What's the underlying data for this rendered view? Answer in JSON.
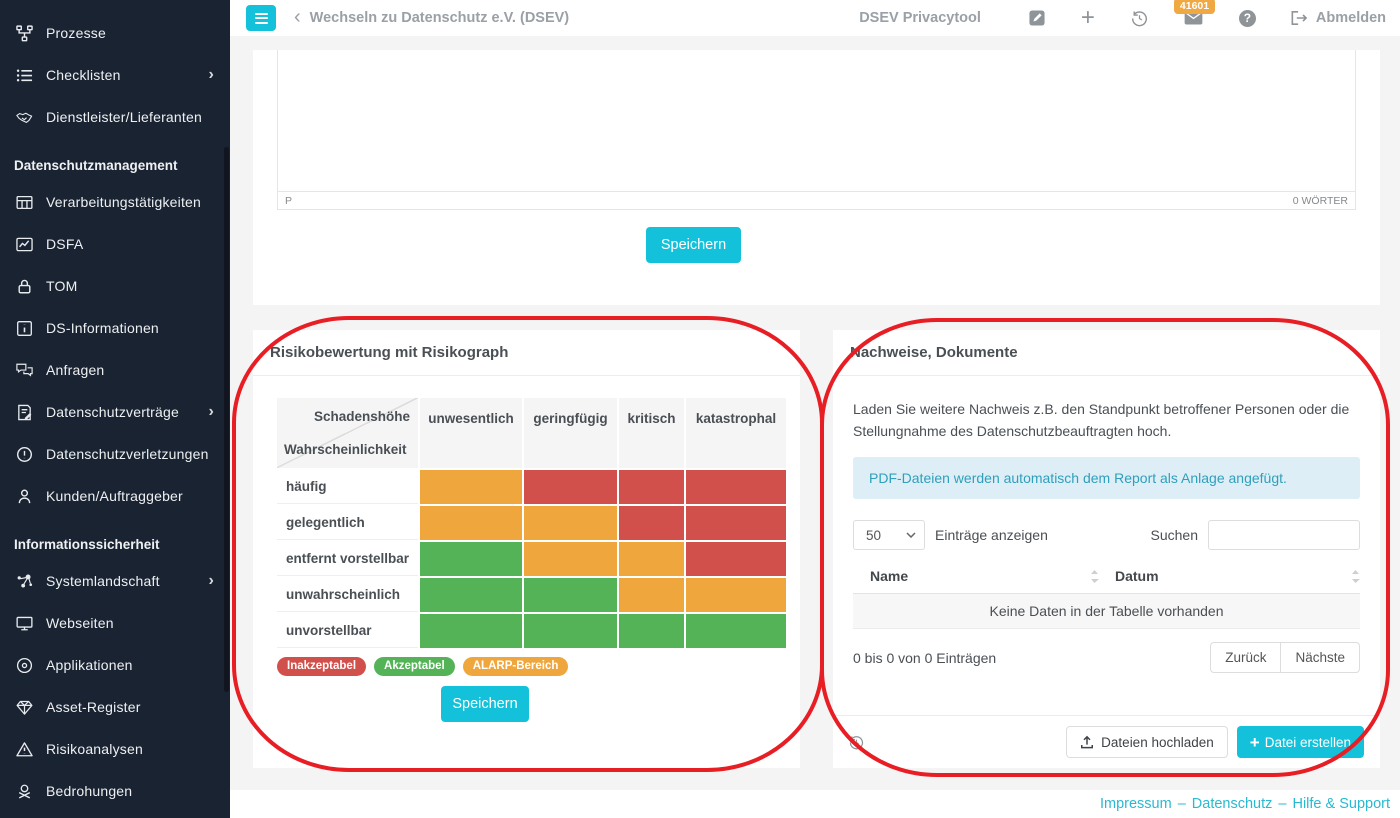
{
  "header": {
    "back_label": "Wechseln zu Datenschutz e.V. (DSEV)",
    "app_name": "DSEV Privacytool",
    "mail_badge": "41601",
    "logout_label": "Abmelden"
  },
  "sidebar": {
    "sections": [
      {
        "header": null,
        "items": [
          {
            "label": "Prozesse",
            "icon": "sitemap-icon"
          },
          {
            "label": "Checklisten",
            "icon": "checklist-icon",
            "chevron": true
          },
          {
            "label": "Dienstleister/Lieferanten",
            "icon": "handshake-icon"
          }
        ]
      },
      {
        "header": "Datenschutzmanagement",
        "items": [
          {
            "label": "Verarbeitungstätigkeiten",
            "icon": "table-icon"
          },
          {
            "label": "DSFA",
            "icon": "chart-icon"
          },
          {
            "label": "TOM",
            "icon": "lock-icon"
          },
          {
            "label": "DS-Informationen",
            "icon": "info-square-icon"
          },
          {
            "label": "Anfragen",
            "icon": "chat-icon"
          },
          {
            "label": "Datenschutzverträge",
            "icon": "contract-icon",
            "chevron": true
          },
          {
            "label": "Datenschutzverletzungen",
            "icon": "alert-circle-icon"
          },
          {
            "label": "Kunden/Auftraggeber",
            "icon": "person-icon"
          }
        ]
      },
      {
        "header": "Informationssicherheit",
        "items": [
          {
            "label": "Systemlandschaft",
            "icon": "network-icon",
            "chevron": true
          },
          {
            "label": "Webseiten",
            "icon": "monitor-icon"
          },
          {
            "label": "Applikationen",
            "icon": "disc-icon"
          },
          {
            "label": "Asset-Register",
            "icon": "gem-icon"
          },
          {
            "label": "Risikoanalysen",
            "icon": "warning-triangle-icon"
          },
          {
            "label": "Bedrohungen",
            "icon": "skull-icon"
          }
        ]
      }
    ]
  },
  "editor_card": {
    "paragraph_indicator": "P",
    "word_count": "0 WÖRTER",
    "save_label": "Speichern"
  },
  "risk_card": {
    "title": "Risikobewertung mit Risikograph",
    "matrix": {
      "col_axis": "Schadenshöhe",
      "row_axis": "Wahrscheinlichkeit",
      "columns": [
        "unwesentlich",
        "geringfügig",
        "kritisch",
        "katastrophal"
      ],
      "rows": [
        "häufig",
        "gelegentlich",
        "entfernt vorstellbar",
        "unwahrscheinlich",
        "unvorstellbar"
      ],
      "cells": [
        [
          "orange",
          "red",
          "red",
          "red"
        ],
        [
          "orange",
          "orange",
          "red",
          "red"
        ],
        [
          "green",
          "orange",
          "orange",
          "red"
        ],
        [
          "green",
          "green",
          "orange",
          "orange"
        ],
        [
          "green",
          "green",
          "green",
          "green"
        ]
      ]
    },
    "legend": [
      {
        "label": "Inakzeptabel",
        "color": "red"
      },
      {
        "label": "Akzeptabel",
        "color": "green"
      },
      {
        "label": "ALARP-Bereich",
        "color": "orange"
      }
    ],
    "save_label": "Speichern"
  },
  "documents_card": {
    "title": "Nachweise, Dokumente",
    "description": "Laden Sie weitere Nachweis z.B. den Standpunkt betroffener Personen oder die Stellungnahme des Datenschutzbeauftragten hoch.",
    "info_note": "PDF-Dateien werden automatisch dem Report als Anlage angefügt.",
    "page_size_value": "50",
    "entries_label": "Einträge anzeigen",
    "search_label": "Suchen",
    "table": {
      "columns": [
        "Name",
        "Datum"
      ],
      "empty_text": "Keine Daten in der Tabelle vorhanden"
    },
    "pagination_info": "0 bis 0 von 0 Einträgen",
    "prev_label": "Zurück",
    "next_label": "Nächste",
    "upload_label": "Dateien hochladen",
    "create_label": "Datei erstellen"
  },
  "footer": {
    "links": [
      "Impressum",
      "Datenschutz",
      "Hilfe & Support"
    ],
    "separator": "–"
  },
  "colors": {
    "red": "#d2504b",
    "orange": "#efa63d",
    "green": "#54b257",
    "cyan": "#13c2da",
    "link_cyan": "#29b9d0",
    "badge_orange": "#f0a843",
    "annotation_red": "#e81e25",
    "sidebar_bg": "#1a2332",
    "info_bg": "#ddeef6",
    "info_text": "#2f9fbc"
  }
}
